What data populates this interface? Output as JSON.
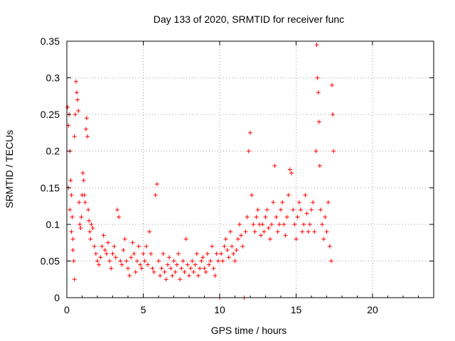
{
  "chart_data": {
    "type": "scatter",
    "title": "Day 133 of 2020, SRMTID for receiver func",
    "xlabel": "GPS time / hours",
    "ylabel": "SRMTID / TECUs",
    "xlim": [
      0,
      24
    ],
    "ylim": [
      0,
      0.35
    ],
    "x_ticks": [
      0,
      5,
      10,
      15,
      20
    ],
    "x_tick_labels": [
      "0",
      "5",
      "10",
      "15",
      "20"
    ],
    "y_ticks": [
      0,
      0.05,
      0.1,
      0.15,
      0.2,
      0.25,
      0.3,
      0.35
    ],
    "y_tick_labels": [
      "0",
      "0.05",
      "0.1",
      "0.15",
      "0.2",
      "0.25",
      "0.3",
      "0.35"
    ],
    "grid": true,
    "marker": "+",
    "color": "#ff0000",
    "series": [
      {
        "name": "SRMTID",
        "points": [
          [
            0.05,
            0.26
          ],
          [
            0.1,
            0.235
          ],
          [
            0.15,
            0.25
          ],
          [
            0.2,
            0.2
          ],
          [
            0.25,
            0.16
          ],
          [
            0.3,
            0.14
          ],
          [
            0.35,
            0.11
          ],
          [
            0.4,
            0.08
          ],
          [
            0.45,
            0.05
          ],
          [
            0.5,
            0.025
          ],
          [
            0.1,
            0.15
          ],
          [
            0.2,
            0.12
          ],
          [
            0.3,
            0.09
          ],
          [
            0.4,
            0.065
          ],
          [
            0.5,
            0.22
          ],
          [
            0.55,
            0.25
          ],
          [
            0.6,
            0.295
          ],
          [
            0.65,
            0.28
          ],
          [
            0.7,
            0.27
          ],
          [
            0.75,
            0.255
          ],
          [
            0.8,
            0.13
          ],
          [
            0.85,
            0.1
          ],
          [
            0.9,
            0.095
          ],
          [
            0.95,
            0.11
          ],
          [
            1.0,
            0.14
          ],
          [
            1.05,
            0.17
          ],
          [
            1.1,
            0.16
          ],
          [
            1.15,
            0.14
          ],
          [
            1.2,
            0.13
          ],
          [
            1.25,
            0.23
          ],
          [
            1.3,
            0.245
          ],
          [
            1.35,
            0.22
          ],
          [
            1.4,
            0.12
          ],
          [
            1.45,
            0.105
          ],
          [
            1.5,
            0.09
          ],
          [
            1.55,
            0.08
          ],
          [
            1.6,
            0.1
          ],
          [
            1.7,
            0.095
          ],
          [
            1.8,
            0.07
          ],
          [
            1.9,
            0.06
          ],
          [
            2.0,
            0.05
          ],
          [
            2.1,
            0.045
          ],
          [
            2.2,
            0.055
          ],
          [
            2.3,
            0.07
          ],
          [
            2.4,
            0.085
          ],
          [
            2.5,
            0.065
          ],
          [
            2.6,
            0.06
          ],
          [
            2.7,
            0.075
          ],
          [
            2.8,
            0.05
          ],
          [
            2.9,
            0.04
          ],
          [
            3.0,
            0.06
          ],
          [
            3.1,
            0.07
          ],
          [
            3.2,
            0.055
          ],
          [
            3.3,
            0.12
          ],
          [
            3.4,
            0.11
          ],
          [
            3.5,
            0.05
          ],
          [
            3.6,
            0.045
          ],
          [
            3.7,
            0.065
          ],
          [
            3.8,
            0.08
          ],
          [
            3.9,
            0.05
          ],
          [
            4.0,
            0.04
          ],
          [
            4.1,
            0.03
          ],
          [
            4.2,
            0.055
          ],
          [
            4.3,
            0.075
          ],
          [
            4.4,
            0.06
          ],
          [
            4.5,
            0.035
          ],
          [
            4.6,
            0.05
          ],
          [
            4.7,
            0.07
          ],
          [
            4.8,
            0.045
          ],
          [
            4.9,
            0.04
          ],
          [
            5.0,
            0.06
          ],
          [
            5.1,
            0.05
          ],
          [
            5.2,
            0.07
          ],
          [
            5.3,
            0.045
          ],
          [
            5.4,
            0.09
          ],
          [
            5.5,
            0.06
          ],
          [
            5.6,
            0.04
          ],
          [
            5.7,
            0.035
          ],
          [
            5.8,
            0.14
          ],
          [
            5.9,
            0.155
          ],
          [
            6.0,
            0.05
          ],
          [
            6.1,
            0.03
          ],
          [
            6.2,
            0.04
          ],
          [
            6.3,
            0.06
          ],
          [
            6.4,
            0.035
          ],
          [
            6.5,
            0.025
          ],
          [
            6.6,
            0.045
          ],
          [
            6.7,
            0.055
          ],
          [
            6.8,
            0.04
          ],
          [
            6.9,
            0.03
          ],
          [
            7.0,
            0.05
          ],
          [
            7.1,
            0.035
          ],
          [
            7.2,
            0.045
          ],
          [
            7.3,
            0.06
          ],
          [
            7.4,
            0.025
          ],
          [
            7.5,
            0.04
          ],
          [
            7.6,
            0.05
          ],
          [
            7.7,
            0.035
          ],
          [
            7.8,
            0.08
          ],
          [
            7.9,
            0.045
          ],
          [
            8.0,
            0.03
          ],
          [
            8.1,
            0.04
          ],
          [
            8.2,
            0.05
          ],
          [
            8.3,
            0.035
          ],
          [
            8.4,
            0.045
          ],
          [
            8.5,
            0.06
          ],
          [
            8.6,
            0.03
          ],
          [
            8.7,
            0.04
          ],
          [
            8.8,
            0.05
          ],
          [
            8.9,
            0.055
          ],
          [
            9.0,
            0.04
          ],
          [
            9.1,
            0.035
          ],
          [
            9.2,
            0.06
          ],
          [
            9.3,
            0.045
          ],
          [
            9.4,
            0.05
          ],
          [
            9.5,
            0.07
          ],
          [
            9.6,
            0.04
          ],
          [
            9.7,
            0.03
          ],
          [
            9.8,
            0.06
          ],
          [
            9.9,
            0.05
          ],
          [
            10.0,
            0.0
          ],
          [
            10.1,
            0.06
          ],
          [
            10.2,
            0.05
          ],
          [
            10.3,
            0.07
          ],
          [
            10.4,
            0.08
          ],
          [
            10.5,
            0.065
          ],
          [
            10.6,
            0.055
          ],
          [
            10.7,
            0.09
          ],
          [
            10.8,
            0.07
          ],
          [
            10.9,
            0.06
          ],
          [
            11.0,
            0.05
          ],
          [
            11.1,
            0.065
          ],
          [
            11.2,
            0.08
          ],
          [
            11.3,
            0.1
          ],
          [
            11.4,
            0.085
          ],
          [
            11.5,
            0.07
          ],
          [
            11.6,
            0.0
          ],
          [
            11.7,
            0.09
          ],
          [
            11.8,
            0.11
          ],
          [
            11.9,
            0.2
          ],
          [
            12.0,
            0.225
          ],
          [
            12.1,
            0.14
          ],
          [
            12.2,
            0.1
          ],
          [
            12.3,
            0.09
          ],
          [
            12.4,
            0.11
          ],
          [
            12.5,
            0.12
          ],
          [
            12.6,
            0.1
          ],
          [
            12.7,
            0.085
          ],
          [
            12.8,
            0.1
          ],
          [
            12.9,
            0.09
          ],
          [
            13.0,
            0.11
          ],
          [
            13.1,
            0.12
          ],
          [
            13.2,
            0.095
          ],
          [
            13.3,
            0.08
          ],
          [
            13.4,
            0.1
          ],
          [
            13.5,
            0.13
          ],
          [
            13.6,
            0.18
          ],
          [
            13.7,
            0.11
          ],
          [
            13.8,
            0.09
          ],
          [
            13.9,
            0.1
          ],
          [
            14.0,
            0.12
          ],
          [
            14.1,
            0.13
          ],
          [
            14.2,
            0.1
          ],
          [
            14.3,
            0.085
          ],
          [
            14.4,
            0.11
          ],
          [
            14.5,
            0.14
          ],
          [
            14.6,
            0.175
          ],
          [
            14.7,
            0.17
          ],
          [
            14.8,
            0.12
          ],
          [
            14.9,
            0.1
          ],
          [
            15.0,
            0.08
          ],
          [
            15.1,
            0.11
          ],
          [
            15.2,
            0.13
          ],
          [
            15.3,
            0.12
          ],
          [
            15.4,
            0.09
          ],
          [
            15.5,
            0.1
          ],
          [
            15.6,
            0.14
          ],
          [
            15.7,
            0.115
          ],
          [
            15.8,
            0.09
          ],
          [
            15.9,
            0.1
          ],
          [
            16.0,
            0.12
          ],
          [
            16.1,
            0.13
          ],
          [
            16.2,
            0.09
          ],
          [
            16.3,
            0.2
          ],
          [
            16.35,
            0.345
          ],
          [
            16.4,
            0.3
          ],
          [
            16.45,
            0.28
          ],
          [
            16.5,
            0.24
          ],
          [
            16.55,
            0.18
          ],
          [
            16.6,
            0.12
          ],
          [
            16.7,
            0.1
          ],
          [
            16.8,
            0.08
          ],
          [
            16.9,
            0.11
          ],
          [
            17.0,
            0.09
          ],
          [
            17.1,
            0.13
          ],
          [
            17.2,
            0.07
          ],
          [
            17.3,
            0.05
          ],
          [
            17.35,
            0.29
          ],
          [
            17.4,
            0.25
          ],
          [
            17.45,
            0.2
          ]
        ]
      }
    ]
  }
}
